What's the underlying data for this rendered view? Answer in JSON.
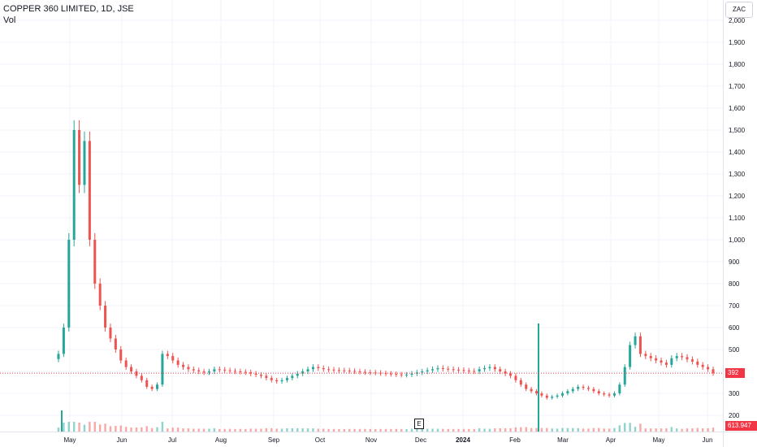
{
  "header": {
    "symbol": "COPPER 360 LIMITED, 1D, JSE",
    "volume_label": "Vol"
  },
  "currency": "ZAC",
  "last_price": "392",
  "last_volume": "613.947 K",
  "event_marker": "E",
  "colors": {
    "up": "#26a69a",
    "down": "#ef5350",
    "grid": "#f0f3fa",
    "price_line": "#f23645"
  },
  "chart_data": {
    "type": "candlestick",
    "title": "COPPER 360 LIMITED, 1D, JSE",
    "ylim": [
      150,
      2050
    ],
    "y_ticks": [
      200,
      300,
      400,
      500,
      600,
      700,
      800,
      900,
      1000,
      1100,
      1200,
      1300,
      1400,
      1500,
      1600,
      1700,
      1800,
      1900,
      2000
    ],
    "y_tick_labels": [
      "200",
      "300",
      "400",
      "500",
      "600",
      "700",
      "800",
      "900",
      "1,000",
      "1,100",
      "1,200",
      "1,300",
      "1,400",
      "1,500",
      "1,600",
      "1,700",
      "1,800",
      "1,900",
      "2,000"
    ],
    "x_ticks": [
      "May",
      "Jun",
      "Jul",
      "Aug",
      "Sep",
      "Oct",
      "Nov",
      "Dec",
      "2024",
      "Feb",
      "Mar",
      "Apr",
      "May",
      "Jun"
    ],
    "series": [
      {
        "name": "price",
        "close": [
          480,
          600,
          1000,
          1500,
          1250,
          1450,
          1000,
          800,
          700,
          600,
          550,
          500,
          450,
          420,
          400,
          380,
          360,
          330,
          320,
          340,
          480,
          470,
          450,
          430,
          420,
          410,
          405,
          400,
          395,
          400,
          410,
          408,
          405,
          402,
          400,
          398,
          396,
          390,
          385,
          380,
          370,
          360,
          355,
          360,
          370,
          380,
          390,
          400,
          410,
          420,
          415,
          410,
          408,
          406,
          405,
          404,
          402,
          400,
          398,
          396,
          395,
          394,
          392,
          390,
          388,
          386,
          384,
          385,
          390,
          395,
          400,
          405,
          410,
          415,
          412,
          410,
          408,
          406,
          404,
          402,
          400,
          410,
          415,
          420,
          410,
          400,
          390,
          380,
          360,
          340,
          320,
          310,
          300,
          290,
          280,
          285,
          290,
          300,
          310,
          320,
          330,
          325,
          320,
          310,
          300,
          295,
          290,
          300,
          340,
          420,
          520,
          560,
          480,
          470,
          460,
          450,
          440,
          430,
          460,
          470,
          465,
          455,
          445,
          430,
          420,
          410,
          392
        ]
      }
    ],
    "volume_label": "Vol"
  }
}
